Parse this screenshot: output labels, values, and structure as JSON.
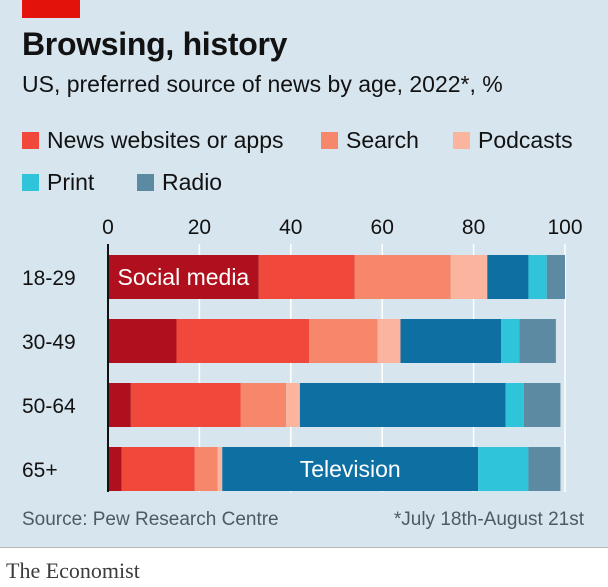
{
  "header": {
    "title": "Browsing, history",
    "subtitle": "US, preferred source of news by age, 2022*, %"
  },
  "footer": {
    "source": "Source: Pew Research Centre",
    "note": "*July 18th-August 21st",
    "brand": "The Economist"
  },
  "colors": {
    "social": "#b0101d",
    "websites": "#f0483a",
    "search": "#f7876b",
    "podcasts": "#fbb59e",
    "television": "#0e6fa3",
    "print": "#2fc4d9",
    "radio": "#5c8aa2",
    "panel": "#d7e5ee",
    "grid": "#ffffff",
    "text": "#121212"
  },
  "chart_data": {
    "type": "bar",
    "orientation": "horizontal",
    "stacked": true,
    "title": "Browsing, history",
    "subtitle": "US, preferred source of news by age, 2022*, %",
    "categories": [
      "18-29",
      "30-49",
      "50-64",
      "65+"
    ],
    "xlim": [
      0,
      100
    ],
    "xticks": [
      0,
      20,
      40,
      60,
      80,
      100
    ],
    "grid": true,
    "legend_position": "top",
    "legend": [
      "News websites or apps",
      "Search",
      "Podcasts",
      "Print",
      "Radio"
    ],
    "inline_labels": [
      {
        "text": "Social media",
        "series": "Social media",
        "category": "18-29"
      },
      {
        "text": "Television",
        "series": "Television",
        "category": "65+"
      }
    ],
    "series": [
      {
        "name": "Social media",
        "color_key": "social",
        "values": [
          33,
          15,
          5,
          3
        ]
      },
      {
        "name": "News websites or apps",
        "color_key": "websites",
        "values": [
          21,
          29,
          24,
          16
        ]
      },
      {
        "name": "Search",
        "color_key": "search",
        "values": [
          21,
          15,
          10,
          5
        ]
      },
      {
        "name": "Podcasts",
        "color_key": "podcasts",
        "values": [
          8,
          5,
          3,
          1
        ]
      },
      {
        "name": "Television",
        "color_key": "television",
        "values": [
          9,
          22,
          45,
          56
        ]
      },
      {
        "name": "Print",
        "color_key": "print",
        "values": [
          4,
          4,
          4,
          11
        ]
      },
      {
        "name": "Radio",
        "color_key": "radio",
        "values": [
          4,
          8,
          8,
          7
        ]
      }
    ]
  }
}
